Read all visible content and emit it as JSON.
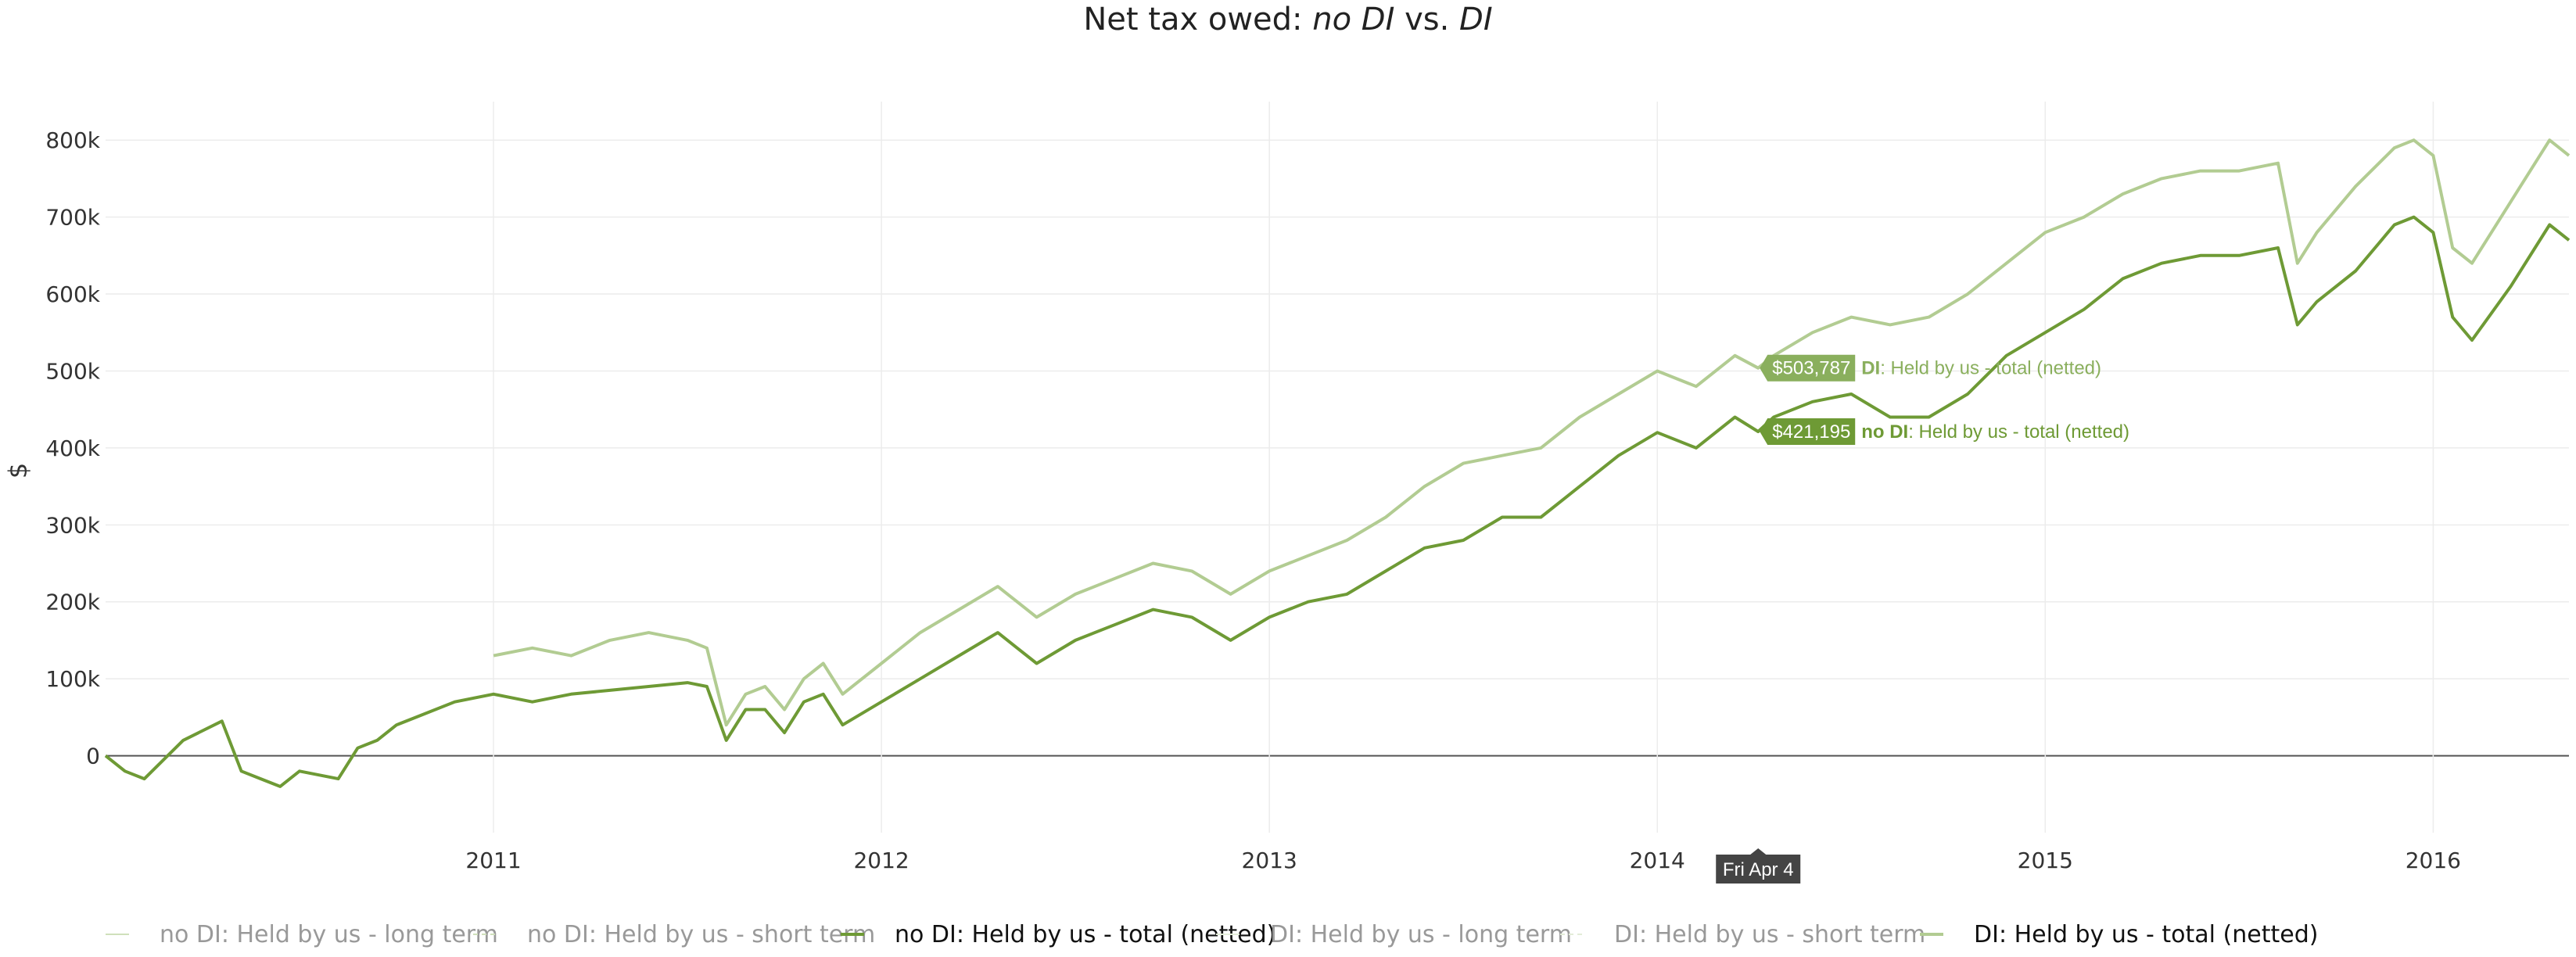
{
  "chart_data": {
    "type": "line",
    "title_plain": "Net tax owed: ",
    "title_italic1": "no DI",
    "title_mid": " vs. ",
    "title_italic2": "DI",
    "ylabel": "$",
    "xlim": [
      2010.0,
      2016.35
    ],
    "ylim": [
      -100000,
      850000
    ],
    "yticks": [
      0,
      100000,
      200000,
      300000,
      400000,
      500000,
      600000,
      700000,
      800000
    ],
    "ytick_labels": [
      "0",
      "100k",
      "200k",
      "300k",
      "400k",
      "500k",
      "600k",
      "700k",
      "800k"
    ],
    "xticks": [
      2011,
      2012,
      2013,
      2014,
      2015,
      2016
    ],
    "xtick_labels": [
      "2011",
      "2012",
      "2013",
      "2014",
      "2015",
      "2016"
    ],
    "grid": true,
    "legend_position": "bottom",
    "series": [
      {
        "name": "Held by us - total (netted)",
        "name_prefix": "no DI",
        "color": "#6e9a35",
        "x": [
          2010.0,
          2010.05,
          2010.1,
          2010.2,
          2010.3,
          2010.35,
          2010.4,
          2010.45,
          2010.5,
          2010.6,
          2010.65,
          2010.7,
          2010.75,
          2010.8,
          2010.9,
          2011.0,
          2011.1,
          2011.2,
          2011.3,
          2011.4,
          2011.5,
          2011.55,
          2011.6,
          2011.65,
          2011.7,
          2011.75,
          2011.8,
          2011.85,
          2011.9,
          2012.0,
          2012.1,
          2012.2,
          2012.3,
          2012.35,
          2012.4,
          2012.5,
          2012.6,
          2012.7,
          2012.8,
          2012.9,
          2013.0,
          2013.1,
          2013.2,
          2013.3,
          2013.4,
          2013.5,
          2013.6,
          2013.7,
          2013.8,
          2013.9,
          2014.0,
          2014.1,
          2014.2,
          2014.26,
          2014.3,
          2014.4,
          2014.5,
          2014.6,
          2014.7,
          2014.8,
          2014.9,
          2015.0,
          2015.1,
          2015.2,
          2015.3,
          2015.4,
          2015.5,
          2015.6,
          2015.65,
          2015.7,
          2015.8,
          2015.9,
          2015.95,
          2016.0,
          2016.05,
          2016.1,
          2016.2,
          2016.3,
          2016.35
        ],
        "y": [
          0,
          -20000,
          -30000,
          20000,
          45000,
          -20000,
          -30000,
          -40000,
          -20000,
          -30000,
          10000,
          20000,
          40000,
          50000,
          70000,
          80000,
          70000,
          80000,
          85000,
          90000,
          95000,
          90000,
          20000,
          60000,
          60000,
          30000,
          70000,
          80000,
          40000,
          70000,
          100000,
          130000,
          160000,
          140000,
          120000,
          150000,
          170000,
          190000,
          180000,
          150000,
          180000,
          200000,
          210000,
          240000,
          270000,
          280000,
          310000,
          310000,
          350000,
          390000,
          420000,
          400000,
          440000,
          421195,
          440000,
          460000,
          470000,
          440000,
          440000,
          470000,
          520000,
          550000,
          580000,
          620000,
          640000,
          650000,
          650000,
          660000,
          560000,
          590000,
          630000,
          690000,
          700000,
          680000,
          570000,
          540000,
          610000,
          690000,
          670000
        ]
      },
      {
        "name": "Held by us - total (netted)",
        "name_prefix": "DI",
        "color": "#b2cc92",
        "x": [
          2011.0,
          2011.1,
          2011.2,
          2011.3,
          2011.4,
          2011.5,
          2011.55,
          2011.6,
          2011.65,
          2011.7,
          2011.75,
          2011.8,
          2011.85,
          2011.9,
          2012.0,
          2012.1,
          2012.2,
          2012.3,
          2012.35,
          2012.4,
          2012.5,
          2012.6,
          2012.7,
          2012.8,
          2012.9,
          2013.0,
          2013.1,
          2013.2,
          2013.3,
          2013.4,
          2013.5,
          2013.6,
          2013.7,
          2013.8,
          2013.9,
          2014.0,
          2014.1,
          2014.2,
          2014.26,
          2014.3,
          2014.4,
          2014.5,
          2014.6,
          2014.7,
          2014.8,
          2014.9,
          2015.0,
          2015.1,
          2015.2,
          2015.3,
          2015.4,
          2015.5,
          2015.6,
          2015.65,
          2015.7,
          2015.8,
          2015.9,
          2015.95,
          2016.0,
          2016.05,
          2016.1,
          2016.2,
          2016.3,
          2016.35
        ],
        "y": [
          130000,
          140000,
          130000,
          150000,
          160000,
          150000,
          140000,
          40000,
          80000,
          90000,
          60000,
          100000,
          120000,
          80000,
          120000,
          160000,
          190000,
          220000,
          200000,
          180000,
          210000,
          230000,
          250000,
          240000,
          210000,
          240000,
          260000,
          280000,
          310000,
          350000,
          380000,
          390000,
          400000,
          440000,
          470000,
          500000,
          480000,
          520000,
          503787,
          520000,
          550000,
          570000,
          560000,
          570000,
          600000,
          640000,
          680000,
          700000,
          730000,
          750000,
          760000,
          760000,
          770000,
          640000,
          680000,
          740000,
          790000,
          800000,
          780000,
          660000,
          640000,
          720000,
          800000,
          780000
        ]
      }
    ],
    "hidden_legend_entries": [
      {
        "prefix": "no DI",
        "label": ": Held by us - long term",
        "color": "#cfe0bb",
        "dash": "none",
        "active": false
      },
      {
        "prefix": "no DI",
        "label": ": Held by us - short term",
        "color": "#cfe0bb",
        "dash": "6,5",
        "active": false
      },
      {
        "prefix": "no DI",
        "label": ": Held by us - total (netted)",
        "color": "#6e9a35",
        "dash": "none",
        "active": true
      },
      {
        "prefix": "DI",
        "label": ": Held by us - long term",
        "color": "#e3ecd8",
        "dash": "none",
        "active": false
      },
      {
        "prefix": "DI",
        "label": ": Held by us - short term",
        "color": "#e3ecd8",
        "dash": "6,5",
        "active": false
      },
      {
        "prefix": "DI",
        "label": ": Held by us - total (netted)",
        "color": "#b2cc92",
        "dash": "none",
        "active": true
      }
    ],
    "tooltips": [
      {
        "value_label": "$503,787",
        "prefix": "DI",
        "text": ": Held by us - total (netted)",
        "x": 2014.26,
        "y": 503787,
        "box_color": "#8aaf5d",
        "text_color": "#8aaf5d"
      },
      {
        "value_label": "$421,195",
        "prefix": "no DI",
        "text": ": Held by us - total (netted)",
        "x": 2014.26,
        "y": 421195,
        "box_color": "#6e9a35",
        "text_color": "#6e9a35"
      }
    ],
    "x_hover_label": "Fri Apr  4",
    "x_hover_value": 2014.26
  }
}
